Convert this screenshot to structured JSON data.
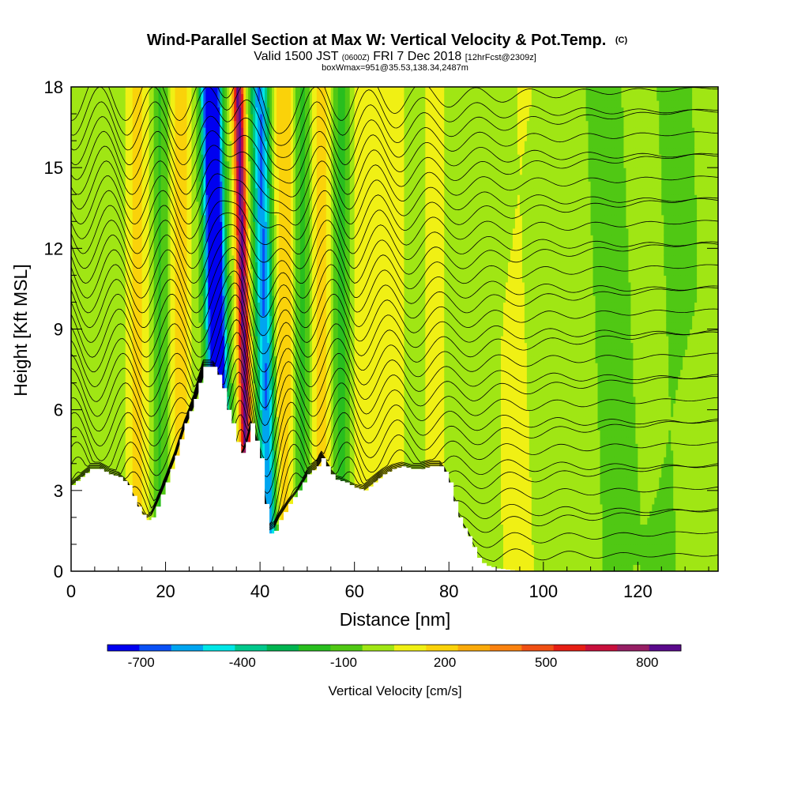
{
  "chart_data": {
    "type": "heatmap",
    "title": "Wind-Parallel Section at Max W: Vertical Velocity & Pot.Temp.",
    "title_mark": "(C)",
    "subtitle_parts": [
      "Valid 1500 JST ",
      "(0600Z)",
      " FRI 7 Dec 2018 ",
      "[12hrFcst@2309z]"
    ],
    "subtitle2": "boxWmax=951@35.53,138.34,2487m",
    "xlabel": "Distance [nm]",
    "ylabel": "Height [Kft MSL]",
    "xlim": [
      0,
      137
    ],
    "ylim": [
      0,
      18
    ],
    "x_ticks": [
      "0",
      "20",
      "40",
      "60",
      "80",
      "100",
      "120"
    ],
    "y_ticks": [
      "0",
      "3",
      "6",
      "9",
      "12",
      "15",
      "18"
    ],
    "colorbar": {
      "label": "Vertical Velocity [cm/s]",
      "ticks": [
        "-700",
        "-400",
        "-100",
        "200",
        "500",
        "800"
      ],
      "min": -800,
      "max": 900,
      "step": 100,
      "colors": [
        "#0000f0",
        "#0a50f5",
        "#00a5f0",
        "#00e6e6",
        "#00c88c",
        "#00b450",
        "#28be1e",
        "#50c814",
        "#a0e614",
        "#f0f014",
        "#fad20a",
        "#faaa0a",
        "#fa820f",
        "#f05014",
        "#e61e14",
        "#c80f3c",
        "#961e64",
        "#5a0a8c"
      ]
    },
    "terrain": {
      "x": [
        0,
        2,
        4,
        6,
        8,
        10,
        12,
        14,
        15,
        16,
        17,
        18,
        20,
        22,
        24,
        26,
        28,
        30,
        31,
        32,
        33,
        34,
        35,
        36,
        37,
        38,
        40,
        41,
        42,
        43,
        44,
        46,
        48,
        50,
        52,
        53,
        54,
        55,
        56,
        58,
        60,
        62,
        64,
        66,
        68,
        70,
        72,
        74,
        76,
        78,
        79,
        80,
        81,
        82,
        83,
        84,
        85,
        86,
        87,
        88,
        90,
        95,
        100,
        110,
        120,
        137
      ],
      "y_kft": [
        3.2,
        3.5,
        3.8,
        3.8,
        3.6,
        3.5,
        3.2,
        2.4,
        2.1,
        1.9,
        2.0,
        2.4,
        3.3,
        4.3,
        5.5,
        6.4,
        7.6,
        7.6,
        7.3,
        6.8,
        6.0,
        5.5,
        4.8,
        4.4,
        4.8,
        5.5,
        4.2,
        2.5,
        1.4,
        1.5,
        1.9,
        2.5,
        3.0,
        3.6,
        3.9,
        4.2,
        3.9,
        3.6,
        3.4,
        3.3,
        3.1,
        3.0,
        3.3,
        3.6,
        3.8,
        3.9,
        3.8,
        3.8,
        3.9,
        3.9,
        3.7,
        3.3,
        2.6,
        2.0,
        1.6,
        1.3,
        0.9,
        0.5,
        0.3,
        0.2,
        0.1,
        0.0,
        0.0,
        0.0,
        0.0,
        0.0
      ]
    },
    "velocity_bands": [
      {
        "x": 14,
        "width": 2.2,
        "peak_cm_s": 220
      },
      {
        "x": 19,
        "width": 1.8,
        "peak_cm_s": -150
      },
      {
        "x": 23,
        "width": 2.0,
        "peak_cm_s": 240
      },
      {
        "x": 30,
        "width": 1.6,
        "peak_cm_s": -760
      },
      {
        "x": 31.5,
        "width": 1.5,
        "peak_cm_s": -800
      },
      {
        "x": 36.5,
        "width": 1.2,
        "peak_cm_s": 900
      },
      {
        "x": 41,
        "width": 1.8,
        "peak_cm_s": -650
      },
      {
        "x": 45,
        "width": 2.0,
        "peak_cm_s": 260
      },
      {
        "x": 49,
        "width": 1.8,
        "peak_cm_s": -160
      },
      {
        "x": 53,
        "width": 2.2,
        "peak_cm_s": 230
      },
      {
        "x": 57,
        "width": 2.0,
        "peak_cm_s": -170
      },
      {
        "x": 62,
        "width": 2.2,
        "peak_cm_s": 150
      },
      {
        "x": 68,
        "width": 3.0,
        "peak_cm_s": 110
      },
      {
        "x": 77,
        "width": 3.0,
        "peak_cm_s": 100
      },
      {
        "x": 95,
        "width": 4.0,
        "peak_cm_s": 90
      },
      {
        "x": 114,
        "width": 4.0,
        "peak_cm_s": -80
      },
      {
        "x": 127,
        "width": 4.0,
        "peak_cm_s": -70
      }
    ],
    "isentropes": {
      "count": 32,
      "base_y_kft": 0.6,
      "spacing_kft": 0.55
    }
  }
}
